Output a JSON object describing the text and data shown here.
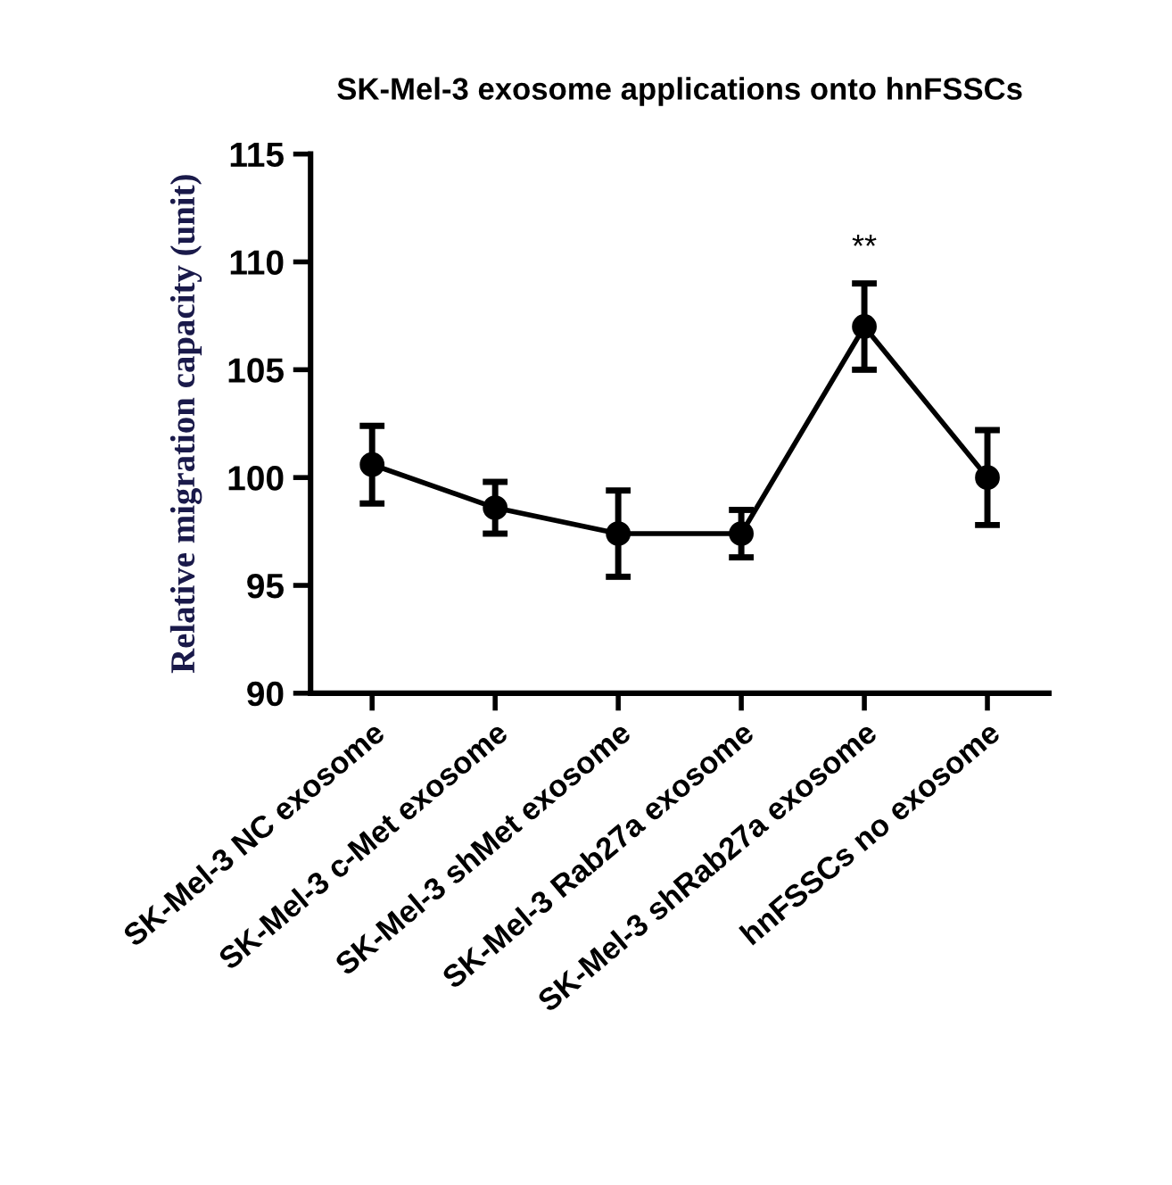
{
  "chart_data": {
    "type": "line",
    "title": "SK-Mel-3 exosome applications onto hnFSSCs",
    "ylabel": "Relative migration capacity (unit)",
    "categories": [
      "SK-Mel-3 NC exosome",
      "SK-Mel-3 c-Met exosome",
      "SK-Mel-3 shMet exosome",
      "SK-Mel-3 Rab27a exosome",
      "SK-Mel-3 shRab27a exosome",
      "hnFSSCs no exosome"
    ],
    "series": [
      {
        "color": "#000000",
        "values": [
          100.6,
          98.6,
          97.4,
          97.4,
          107.0,
          100.0
        ],
        "errors": [
          1.8,
          1.2,
          2.0,
          1.1,
          2.0,
          2.2
        ]
      }
    ],
    "ylim": [
      90,
      115
    ],
    "yticks": [
      90,
      95,
      100,
      105,
      110,
      115
    ],
    "marker": "circle",
    "line_style": "solid",
    "grid": false,
    "legend": false,
    "annotations": [
      "**"
    ]
  }
}
